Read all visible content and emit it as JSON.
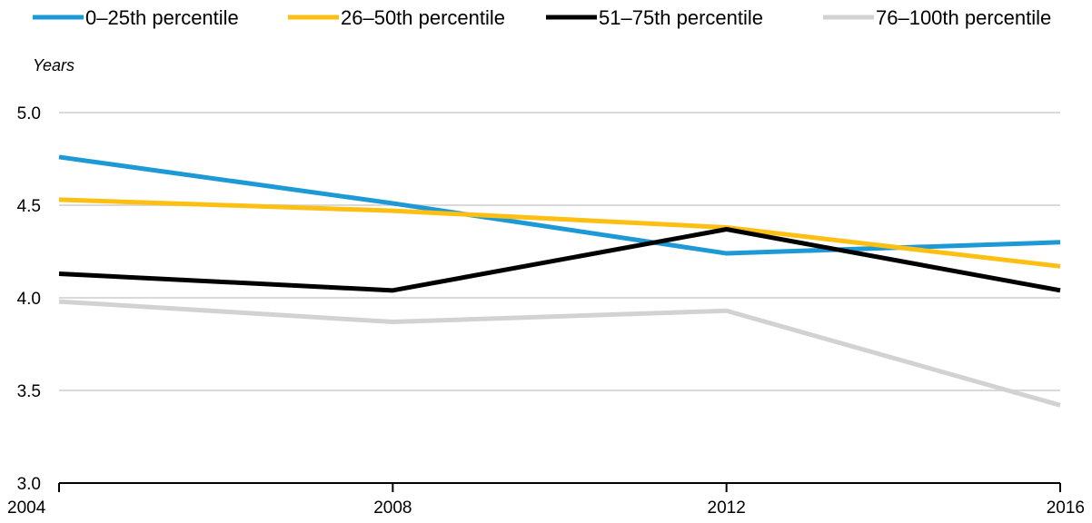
{
  "chart_data": {
    "type": "line",
    "title": "",
    "xlabel": "",
    "ylabel": "Years",
    "x": [
      "2004",
      "2008",
      "2012",
      "2016"
    ],
    "ylim": [
      3.0,
      5.0
    ],
    "yticks": [
      "3.0",
      "3.5",
      "4.0",
      "4.5",
      "5.0"
    ],
    "grid": true,
    "legend_position": "top",
    "series": [
      {
        "name": "0–25th percentile",
        "color": "#1d9ad6",
        "values": [
          4.76,
          4.51,
          4.24,
          4.3
        ]
      },
      {
        "name": "26–50th percentile",
        "color": "#fdbf11",
        "values": [
          4.53,
          4.47,
          4.38,
          4.17
        ]
      },
      {
        "name": "51–75th percentile",
        "color": "#000000",
        "values": [
          4.13,
          4.04,
          4.37,
          4.04
        ]
      },
      {
        "name": "76–100th percentile",
        "color": "#d2d2d2",
        "values": [
          3.98,
          3.87,
          3.93,
          3.42
        ]
      }
    ]
  }
}
